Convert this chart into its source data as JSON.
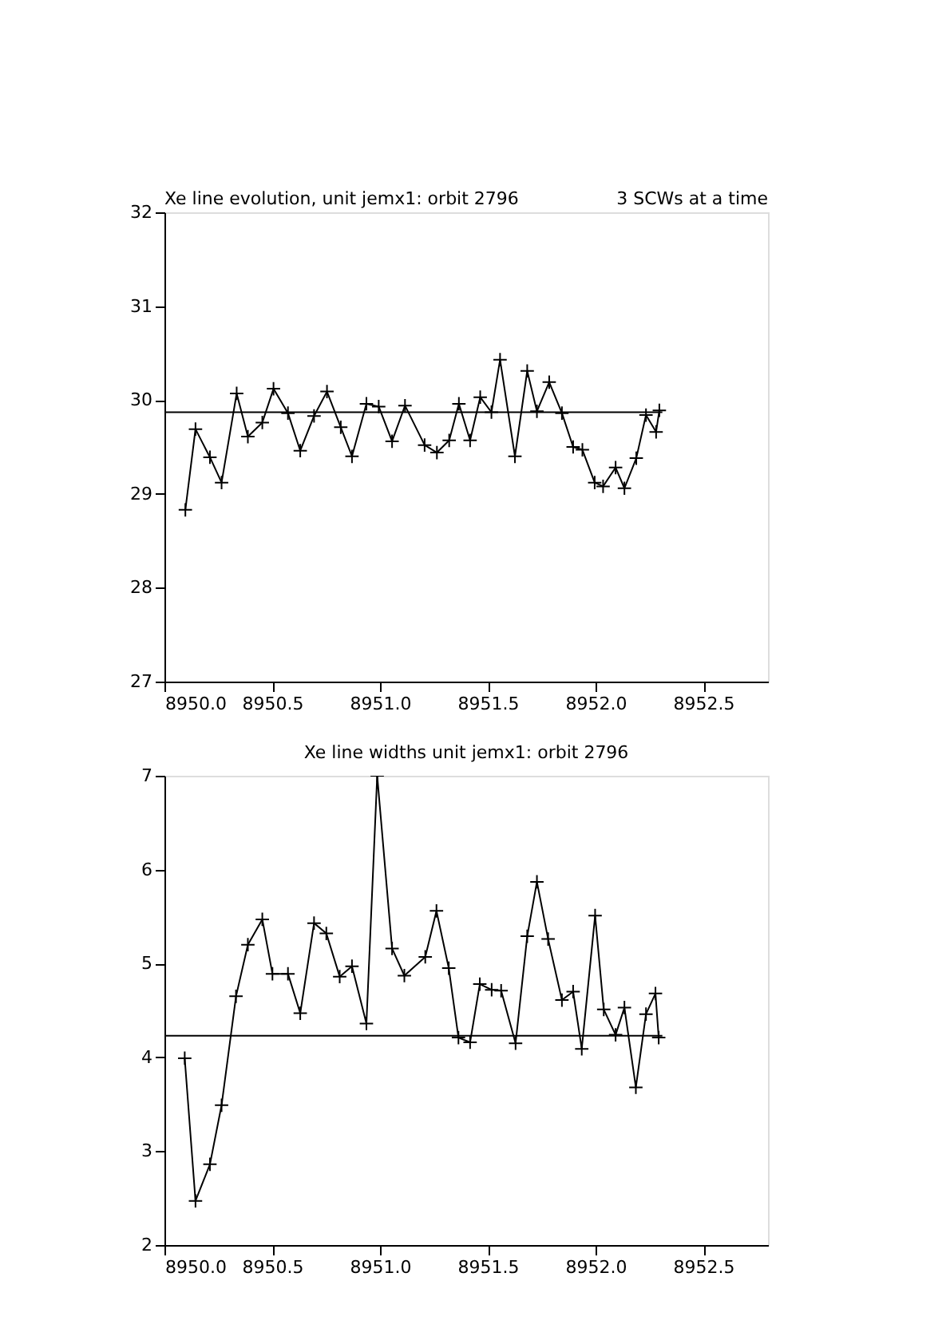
{
  "chart_data": [
    {
      "type": "line",
      "title": "Xe line evolution, unit jemx1: orbit 2796",
      "annotations": [
        "3 SCWs at a time"
      ],
      "xlim": [
        8950.0,
        8952.8
      ],
      "xticks": [
        {
          "value": 8950.0,
          "label": "8950.0"
        },
        {
          "value": 8950.5,
          "label": "8950.5"
        },
        {
          "value": 8951.0,
          "label": "8951.0"
        },
        {
          "value": 8951.5,
          "label": "8951.5"
        },
        {
          "value": 8952.0,
          "label": "8952.0"
        },
        {
          "value": 8952.5,
          "label": "8952.5"
        }
      ],
      "ylim": [
        27,
        32
      ],
      "yticks": [
        27,
        28,
        29,
        30,
        31,
        32
      ],
      "grid": false,
      "series": [
        {
          "color": "#000000",
          "marker": "cross",
          "line_style": "solid",
          "x": [
            8950.097,
            8950.144,
            8950.211,
            8950.265,
            8950.335,
            8950.387,
            8950.454,
            8950.506,
            8950.573,
            8950.63,
            8950.694,
            8950.754,
            8950.818,
            8950.87,
            8950.937,
            8950.994,
            8951.056,
            8951.116,
            8951.207,
            8951.264,
            8951.321,
            8951.366,
            8951.418,
            8951.465,
            8951.517,
            8951.557,
            8951.626,
            8951.683,
            8951.728,
            8951.785,
            8951.844,
            8951.896,
            8951.939,
            8951.996,
            8952.035,
            8952.093,
            8952.134,
            8952.189,
            8952.234,
            8952.281,
            8952.296
          ],
          "values": [
            28.83,
            29.69,
            29.39,
            29.12,
            30.07,
            29.61,
            29.76,
            30.12,
            29.86,
            29.46,
            29.83,
            30.09,
            29.71,
            29.4,
            29.96,
            29.93,
            29.56,
            29.94,
            29.52,
            29.44,
            29.57,
            29.96,
            29.57,
            30.03,
            29.87,
            30.43,
            29.4,
            30.31,
            29.88,
            30.19,
            29.86,
            29.5,
            29.47,
            29.12,
            29.08,
            29.28,
            29.06,
            29.38,
            29.84,
            29.66,
            29.89
          ]
        },
        {
          "color": "#000000",
          "marker": "none",
          "line_style": "solid",
          "x": [
            8950.0,
            8952.31
          ],
          "values": [
            29.87,
            29.87
          ]
        }
      ]
    },
    {
      "type": "line",
      "title": "Xe line widths unit jemx1: orbit 2796",
      "xlim": [
        8950.0,
        8952.8
      ],
      "xticks": [
        {
          "value": 8950.0,
          "label": "8950.0"
        },
        {
          "value": 8950.5,
          "label": "8950.5"
        },
        {
          "value": 8951.0,
          "label": "8951.0"
        },
        {
          "value": 8951.5,
          "label": "8951.5"
        },
        {
          "value": 8952.0,
          "label": "8952.0"
        },
        {
          "value": 8952.5,
          "label": "8952.5"
        }
      ],
      "ylim": [
        2,
        7
      ],
      "yticks": [
        2,
        3,
        4,
        5,
        6,
        7
      ],
      "grid": false,
      "series": [
        {
          "color": "#000000",
          "marker": "cross",
          "line_style": "solid",
          "x": [
            8950.094,
            8950.144,
            8950.211,
            8950.265,
            8950.332,
            8950.387,
            8950.454,
            8950.501,
            8950.573,
            8950.63,
            8950.694,
            8950.751,
            8950.813,
            8950.87,
            8950.937,
            8950.987,
            8951.056,
            8951.113,
            8951.21,
            8951.262,
            8951.319,
            8951.364,
            8951.418,
            8951.463,
            8951.518,
            8951.562,
            8951.629,
            8951.683,
            8951.728,
            8951.78,
            8951.844,
            8951.896,
            8951.936,
            8951.998,
            8952.038,
            8952.093,
            8952.134,
            8952.187,
            8952.234,
            8952.278,
            8952.293
          ],
          "values": [
            3.99,
            2.47,
            2.86,
            3.49,
            4.65,
            5.2,
            5.47,
            4.89,
            4.89,
            4.47,
            5.43,
            5.32,
            4.86,
            4.97,
            4.36,
            7.0,
            5.16,
            4.87,
            5.07,
            5.56,
            4.95,
            4.21,
            4.16,
            4.78,
            4.72,
            4.71,
            4.15,
            5.29,
            5.87,
            5.26,
            4.61,
            4.7,
            4.09,
            5.51,
            4.51,
            4.24,
            4.53,
            3.68,
            4.46,
            4.68,
            4.21
          ]
        },
        {
          "color": "#000000",
          "marker": "none",
          "line_style": "solid",
          "x": [
            8950.0,
            8952.31
          ],
          "values": [
            4.23,
            4.23
          ]
        }
      ]
    }
  ]
}
